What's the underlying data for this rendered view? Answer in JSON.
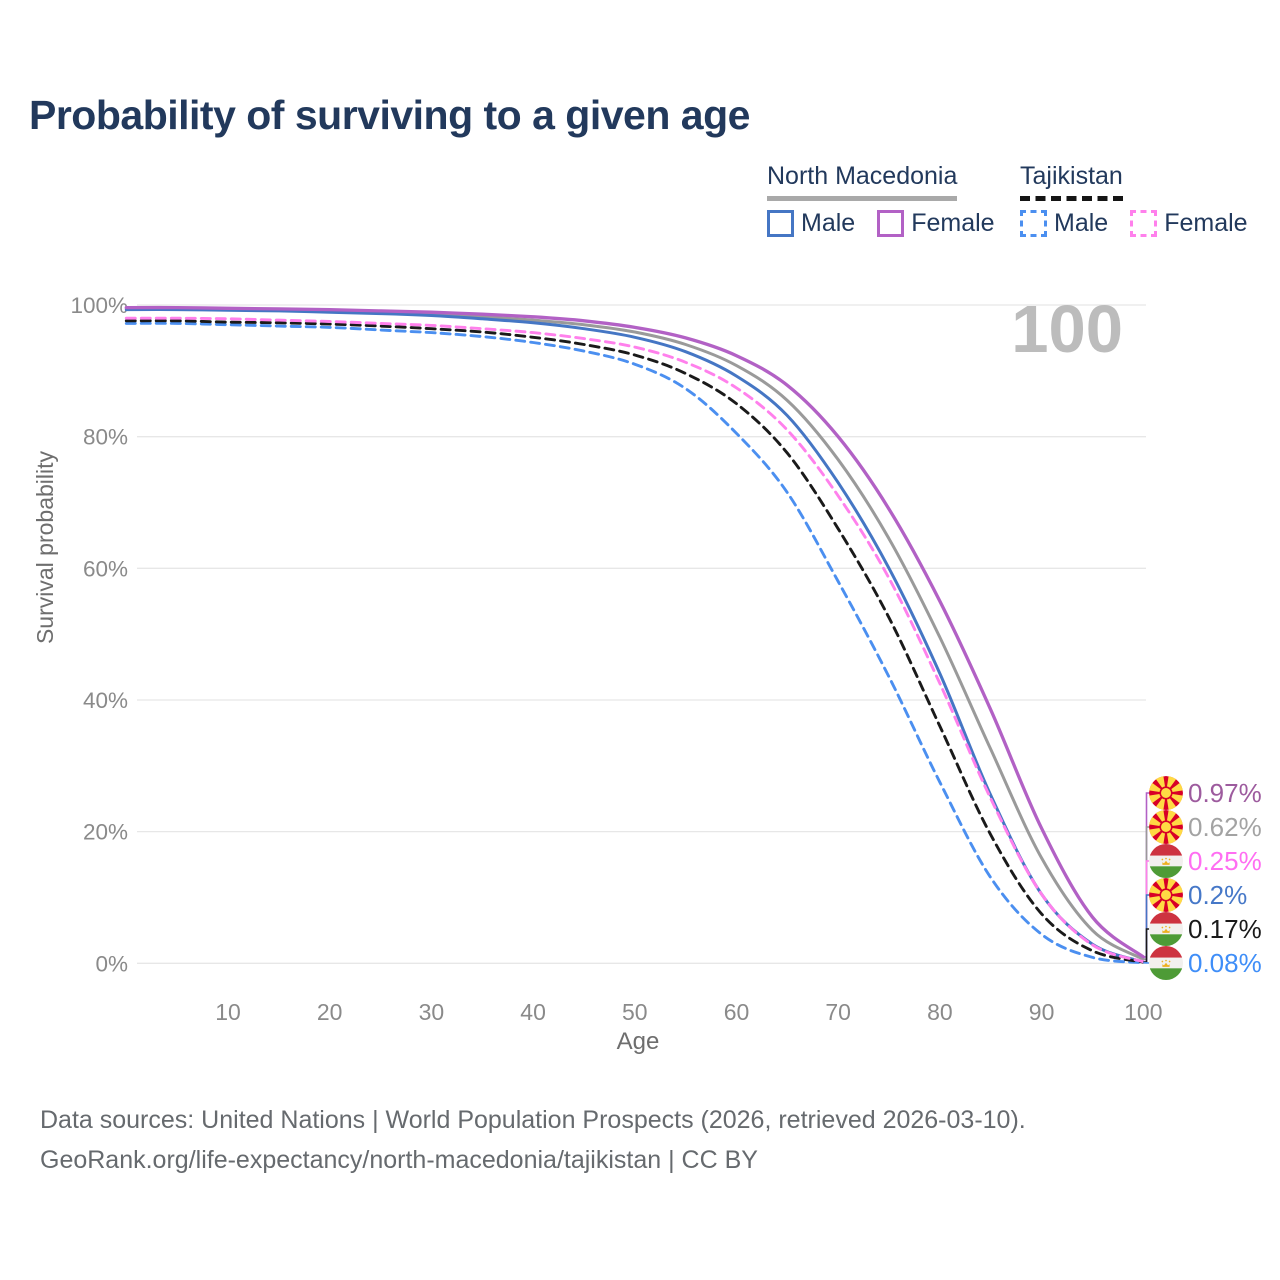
{
  "title": "Probability of surviving to a given age",
  "watermark": "100",
  "legend": {
    "position": "top-right",
    "groups": [
      {
        "name": "North Macedonia",
        "line_style": "solid",
        "items": [
          {
            "label": "Male",
            "color": "#4576c4"
          },
          {
            "label": "Female",
            "color": "#b261c5"
          }
        ]
      },
      {
        "name": "Tajikistan",
        "line_style": "dashed",
        "items": [
          {
            "label": "Male",
            "color": "#4b8ff0"
          },
          {
            "label": "Female",
            "color": "#ff80ec"
          }
        ]
      }
    ]
  },
  "chart_data": {
    "type": "line",
    "title": "Probability of surviving to a given age",
    "xlabel": "Age",
    "ylabel": "Survival probability",
    "xlim": [
      0,
      100
    ],
    "ylim": [
      0,
      100
    ],
    "grid": "horizontal",
    "x_ticks": [
      10,
      20,
      30,
      40,
      50,
      60,
      70,
      80,
      90,
      100
    ],
    "y_tick_values": [
      0,
      20,
      40,
      60,
      80,
      100
    ],
    "y_tick_labels": [
      "0%",
      "20%",
      "40%",
      "60%",
      "80%",
      "100%"
    ],
    "ages": [
      0,
      5,
      10,
      15,
      20,
      25,
      30,
      35,
      40,
      45,
      50,
      55,
      60,
      65,
      70,
      75,
      80,
      85,
      90,
      95,
      100
    ],
    "series": [
      {
        "id": "nm-combined",
        "country": "North Macedonia",
        "sex": "all",
        "color": "#9a9a9a",
        "dash": "solid",
        "values": [
          99.5,
          99.5,
          99.4,
          99.3,
          99.1,
          98.9,
          98.6,
          98.2,
          97.7,
          97.0,
          95.9,
          94.0,
          90.8,
          85.5,
          76.5,
          64.5,
          49.5,
          32.5,
          16.0,
          5.0,
          0.62
        ]
      },
      {
        "id": "nm-male",
        "country": "North Macedonia",
        "sex": "Male",
        "color": "#4576c4",
        "dash": "solid",
        "values": [
          99.3,
          99.3,
          99.2,
          99.1,
          98.9,
          98.7,
          98.4,
          97.9,
          97.3,
          96.4,
          95.1,
          92.9,
          89.2,
          83.2,
          73.0,
          60.0,
          44.0,
          25.5,
          10.5,
          2.9,
          0.2
        ]
      },
      {
        "id": "nm-female",
        "country": "North Macedonia",
        "sex": "Female",
        "color": "#b261c5",
        "dash": "solid",
        "values": [
          99.6,
          99.6,
          99.5,
          99.4,
          99.3,
          99.1,
          98.9,
          98.6,
          98.2,
          97.6,
          96.6,
          95.0,
          92.3,
          87.8,
          80.0,
          69.0,
          55.0,
          38.5,
          20.5,
          7.0,
          0.97
        ]
      },
      {
        "id": "tj-male",
        "country": "Tajikistan",
        "sex": "Male",
        "color": "#4b8ff0",
        "dash": "dashed",
        "values": [
          97.2,
          97.2,
          97.0,
          96.8,
          96.6,
          96.2,
          95.8,
          95.2,
          94.3,
          93.0,
          91.0,
          87.3,
          80.5,
          71.5,
          58.0,
          43.5,
          27.5,
          13.0,
          4.4,
          0.9,
          0.08
        ]
      },
      {
        "id": "tj-combined",
        "country": "Tajikistan",
        "sex": "all",
        "color": "#1a1a1a",
        "dash": "dashed",
        "values": [
          97.6,
          97.6,
          97.4,
          97.3,
          97.1,
          96.8,
          96.4,
          95.9,
          95.1,
          94.0,
          92.4,
          89.6,
          85.0,
          77.5,
          66.0,
          52.5,
          36.0,
          19.5,
          7.5,
          1.9,
          0.17
        ]
      },
      {
        "id": "tj-female",
        "country": "Tajikistan",
        "sex": "Female",
        "color": "#ff80ec",
        "dash": "dashed",
        "values": [
          98.0,
          98.0,
          97.9,
          97.7,
          97.5,
          97.2,
          96.9,
          96.4,
          95.8,
          94.9,
          93.6,
          91.3,
          87.4,
          81.0,
          71.0,
          58.5,
          42.5,
          25.0,
          10.5,
          2.8,
          0.25
        ]
      }
    ]
  },
  "end_labels": [
    {
      "value": "0.97%",
      "color": "#9d5b9e",
      "flag": "north-macedonia",
      "series_index": 2
    },
    {
      "value": "0.62%",
      "color": "#a3a3a3",
      "flag": "north-macedonia",
      "series_index": 0
    },
    {
      "value": "0.25%",
      "color": "#ff6ef2",
      "flag": "tajikistan",
      "series_index": 5
    },
    {
      "value": "0.2%",
      "color": "#4678c8",
      "flag": "north-macedonia",
      "series_index": 1
    },
    {
      "value": "0.17%",
      "color": "#1a1a1a",
      "flag": "tajikistan",
      "series_index": 4
    },
    {
      "value": "0.08%",
      "color": "#3f8ef8",
      "flag": "tajikistan",
      "series_index": 3
    }
  ],
  "footer": {
    "line1": "Data sources: United Nations | World Population Prospects (2026, retrieved 2026-03-10).",
    "line2": "GeoRank.org/life-expectancy/north-macedonia/tajikistan | CC BY"
  }
}
